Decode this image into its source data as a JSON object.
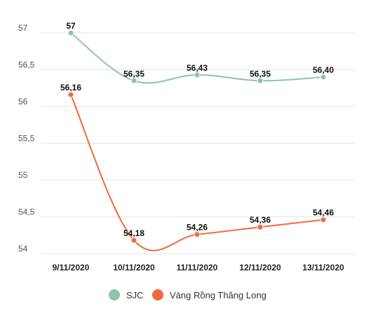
{
  "chart_data": {
    "type": "line",
    "categories": [
      "9/11/2020",
      "10/11/2020",
      "11/11/2020",
      "12/11/2020",
      "13/11/2020"
    ],
    "y_ticks": [
      "57",
      "56,5",
      "56",
      "55,5",
      "55",
      "54,5",
      "54"
    ],
    "ylim": [
      54,
      57
    ],
    "grid": true,
    "legend_position": "bottom-center",
    "series": [
      {
        "name": "SJC",
        "color": "#8fc4a7",
        "values": [
          57,
          56.35,
          56.43,
          56.35,
          56.4
        ],
        "labels": [
          "57",
          "56,35",
          "56,43",
          "56,35",
          "56,40"
        ]
      },
      {
        "name": "Vàng Rồng Thăng Long",
        "color": "#f0693a",
        "values": [
          56.16,
          54.18,
          54.26,
          54.36,
          54.46
        ],
        "labels": [
          "56,16",
          "54,18",
          "54,26",
          "54,36",
          "54,46"
        ]
      }
    ]
  }
}
